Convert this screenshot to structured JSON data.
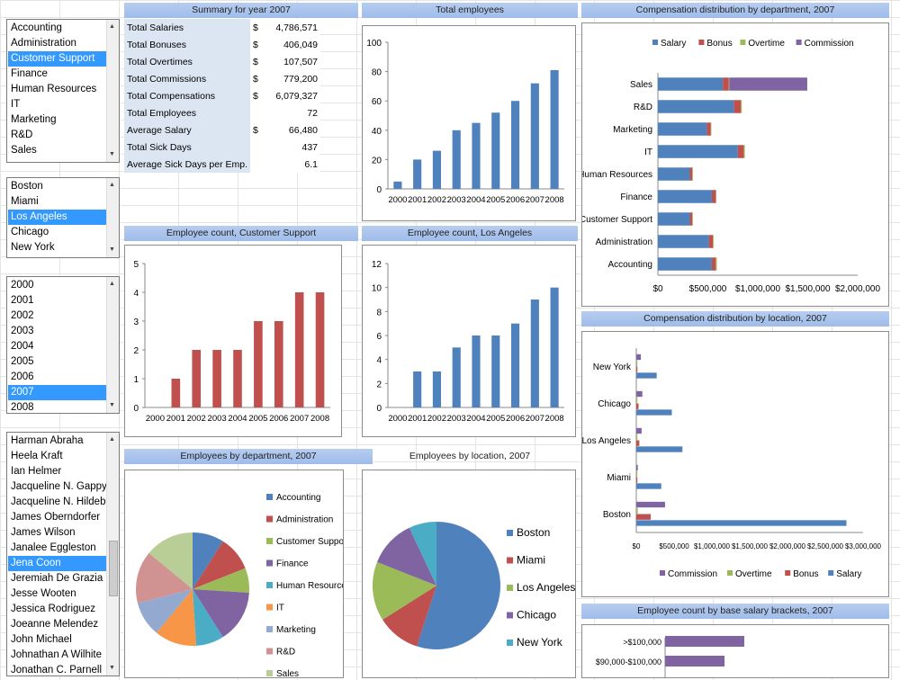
{
  "lists": {
    "departments": {
      "items": [
        "Accounting",
        "Administration",
        "Customer Support",
        "Finance",
        "Human Resources",
        "IT",
        "Marketing",
        "R&D",
        "Sales"
      ],
      "selected": "Customer Support"
    },
    "locations": {
      "items": [
        "Boston",
        "Miami",
        "Los Angeles",
        "Chicago",
        "New York"
      ],
      "selected": "Los Angeles"
    },
    "years": {
      "items": [
        "2000",
        "2001",
        "2002",
        "2003",
        "2004",
        "2005",
        "2006",
        "2007",
        "2008"
      ],
      "selected": "2007"
    },
    "employees": {
      "items": [
        "Harman Abraha",
        "Heela Kraft",
        "Ian Helmer",
        "Jacqueline N. Gappy",
        "Jacqueline N. Hildebrand",
        "James Oberndorfer",
        "James Wilson",
        "Janalee Eggleston",
        "Jena Coon",
        "Jeremiah De Grazia",
        "Jesse Wooten",
        "Jessica Rodriguez",
        "Joeanne Melendez",
        "John  Michael",
        "Johnathan A Wilhite",
        "Jonathan C. Parnell"
      ],
      "selected": "Jena Coon"
    }
  },
  "summary": {
    "title": "Summary for year 2007",
    "rows": [
      {
        "label": "Total Salaries",
        "cur": "$",
        "value": "4,786,571"
      },
      {
        "label": "Total Bonuses",
        "cur": "$",
        "value": "406,049"
      },
      {
        "label": "Total Overtimes",
        "cur": "$",
        "value": "107,507"
      },
      {
        "label": "Total Commissions",
        "cur": "$",
        "value": "779,200"
      },
      {
        "label": "Total Compensations",
        "cur": "$",
        "value": "6,079,327"
      },
      {
        "label": "Total Employees",
        "cur": "",
        "value": "72"
      },
      {
        "label": "Average Salary",
        "cur": "$",
        "value": "66,480"
      },
      {
        "label": "Total Sick Days",
        "cur": "",
        "value": "437"
      },
      {
        "label": "Average Sick Days per Emp.",
        "cur": "",
        "value": "6.1"
      }
    ]
  },
  "colors": {
    "blue": "#4f81bd",
    "red": "#c0504d",
    "green": "#9bbb59",
    "purple": "#8064a2",
    "teal": "#4bacc6",
    "orange": "#f79646",
    "header": "#9fbce9"
  },
  "chart_data": [
    {
      "id": "total_employees",
      "type": "bar",
      "title": "Total employees",
      "categories": [
        "2000",
        "2001",
        "2002",
        "2003",
        "2004",
        "2005",
        "2006",
        "2007",
        "2008"
      ],
      "values": [
        5,
        20,
        26,
        40,
        45,
        52,
        60,
        72,
        81
      ],
      "ylim": [
        0,
        100
      ],
      "yticks": [
        "0",
        "20",
        "40",
        "60",
        "80",
        "100"
      ],
      "color": "#4f81bd"
    },
    {
      "id": "count_dept",
      "type": "bar",
      "title": "Employee count, Customer Support",
      "categories": [
        "2000",
        "2001",
        "2002",
        "2003",
        "2004",
        "2005",
        "2006",
        "2007",
        "2008"
      ],
      "values": [
        0,
        1,
        2,
        2,
        2,
        3,
        3,
        4,
        4
      ],
      "ylim": [
        0,
        5
      ],
      "yticks": [
        "0",
        "1",
        "2",
        "3",
        "4",
        "5"
      ],
      "color": "#c0504d"
    },
    {
      "id": "count_loc",
      "type": "bar",
      "title": "Employee count, Los Angeles",
      "categories": [
        "2000",
        "2001",
        "2002",
        "2003",
        "2004",
        "2005",
        "2006",
        "2007",
        "2008"
      ],
      "values": [
        0,
        3,
        3,
        5,
        6,
        6,
        7,
        9,
        10
      ],
      "ylim": [
        0,
        12
      ],
      "yticks": [
        "0",
        "2",
        "4",
        "6",
        "8",
        "10",
        "12"
      ],
      "color": "#4f81bd"
    },
    {
      "id": "comp_dept",
      "type": "stacked-bar-horizontal",
      "title": "Compensation distribution by department, 2007",
      "categories": [
        "Sales",
        "R&D",
        "Marketing",
        "IT",
        "Human Resources",
        "Finance",
        "Customer Support",
        "Administration",
        "Accounting"
      ],
      "series": [
        {
          "name": "Salary",
          "color": "#4f81bd",
          "values": [
            650000,
            760000,
            490000,
            800000,
            320000,
            540000,
            320000,
            510000,
            540000
          ]
        },
        {
          "name": "Bonus",
          "color": "#c0504d",
          "values": [
            60000,
            70000,
            40000,
            60000,
            25000,
            40000,
            25000,
            40000,
            40000
          ]
        },
        {
          "name": "Overtime",
          "color": "#9bbb59",
          "values": [
            5000,
            10000,
            5000,
            10000,
            5000,
            5000,
            5000,
            8000,
            10000
          ]
        },
        {
          "name": "Commission",
          "color": "#8064a2",
          "values": [
            780000,
            0,
            0,
            0,
            0,
            0,
            0,
            0,
            0
          ]
        }
      ],
      "xlim": [
        0,
        2000000
      ],
      "xticks": [
        "$0",
        "$500,000",
        "$1,000,000",
        "$1,500,000",
        "$2,000,000"
      ]
    },
    {
      "id": "comp_loc",
      "type": "grouped-bar-horizontal",
      "title": "Compensation distribution by location, 2007",
      "categories": [
        "New York",
        "Chicago",
        "Los Angeles",
        "Miami",
        "Boston"
      ],
      "series": [
        {
          "name": "Commission",
          "color": "#8064a2",
          "values": [
            60000,
            80000,
            70000,
            20000,
            380000
          ]
        },
        {
          "name": "Overtime",
          "color": "#9bbb59",
          "values": [
            3000,
            5000,
            5000,
            3000,
            20000
          ]
        },
        {
          "name": "Bonus",
          "color": "#c0504d",
          "values": [
            15000,
            30000,
            40000,
            10000,
            190000
          ]
        },
        {
          "name": "Salary",
          "color": "#4f81bd",
          "values": [
            270000,
            470000,
            610000,
            330000,
            2780000
          ]
        }
      ],
      "xlim": [
        0,
        3000000
      ],
      "xticks": [
        "$0",
        "$500,000",
        "$1,000,000",
        "$1,500,000",
        "$2,000,000",
        "$2,500,000",
        "$3,000,000"
      ]
    },
    {
      "id": "by_dept",
      "type": "pie",
      "title": "Employees by department, 2007",
      "labels": [
        "Accounting",
        "Administration",
        "Customer Support",
        "Finance",
        "Human Resources",
        "IT",
        "Marketing",
        "R&D",
        "Sales"
      ],
      "values": [
        9,
        10,
        7,
        15,
        8,
        12,
        10,
        15,
        14
      ],
      "colors": [
        "#4f81bd",
        "#c0504d",
        "#9bbb59",
        "#8064a2",
        "#4bacc6",
        "#f79646",
        "#93a9cf",
        "#d19392",
        "#b9cd96"
      ]
    },
    {
      "id": "by_loc",
      "type": "pie",
      "title": "Employees by location, 2007",
      "labels": [
        "Boston",
        "Miami",
        "Los Angeles",
        "Chicago",
        "New York"
      ],
      "values": [
        55,
        11,
        15,
        12,
        7
      ],
      "colors": [
        "#4f81bd",
        "#c0504d",
        "#9bbb59",
        "#8064a2",
        "#4bacc6"
      ]
    },
    {
      "id": "salary_brackets",
      "type": "bar-horizontal",
      "title": "Employee count by base salary brackets, 2007",
      "categories": [
        ">$100,000",
        "$90,000-$100,000"
      ],
      "values": [
        4,
        3
      ],
      "color": "#8064a2"
    }
  ]
}
